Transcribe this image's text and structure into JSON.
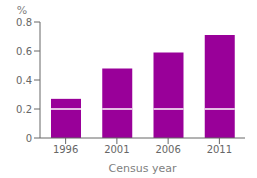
{
  "chart_data": {
    "type": "bar",
    "stacked": true,
    "grid": false,
    "xlabel": "Census year",
    "ylabel": "%",
    "categories": [
      "1996",
      "2001",
      "2006",
      "2011"
    ],
    "series": [
      {
        "color": "#990099",
        "values": [
          0.2,
          0.2,
          0.2,
          0.2
        ]
      },
      {
        "color": "#990099",
        "values": [
          0.07,
          0.28,
          0.39,
          0.51
        ]
      }
    ],
    "ylim": [
      0,
      0.8
    ],
    "yticks": [
      0,
      0.2,
      0.4,
      0.6,
      0.8
    ]
  }
}
